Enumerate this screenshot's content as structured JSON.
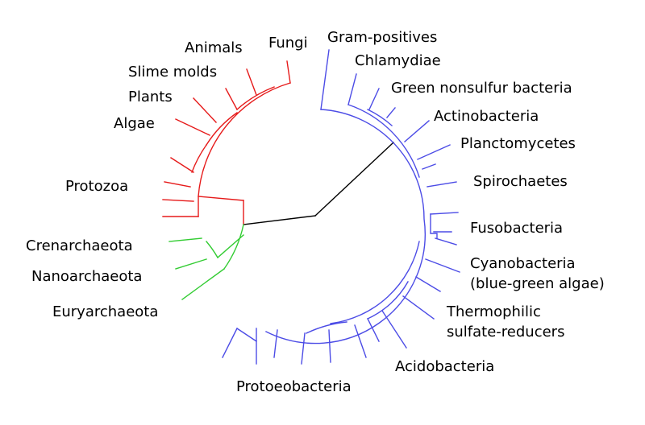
{
  "colors": {
    "bacteria": "#4c4ce6",
    "eukaryota": "#e61a1a",
    "archaea": "#33cc33",
    "root": "#000000"
  },
  "labels": {
    "animals": "Animals",
    "fungi": "Fungi",
    "slime_molds": "Slime molds",
    "plants": "Plants",
    "algae": "Algae",
    "protozoa": "Protozoa",
    "crenarchaeota": "Crenarchaeota",
    "nanoarchaeota": "Nanoarchaeota",
    "euryarchaeota": "Euryarchaeota",
    "gram_positives": "Gram-positives",
    "chlamydiae": "Chlamydiae",
    "green_nonsulfur": "Green nonsulfur bacteria",
    "actinobacteria": "Actinobacteria",
    "planctomycetes": "Planctomycetes",
    "spirochaetes": "Spirochaetes",
    "fusobacteria": "Fusobacteria",
    "cyanobacteria_1": "Cyanobacteria",
    "cyanobacteria_2": "(blue-green algae)",
    "thermophilic_1": "Thermophilic",
    "thermophilic_2": "sulfate-reducers",
    "acidobacteria": "Acidobacteria",
    "proteobacteria": "Protoeobacteria"
  }
}
